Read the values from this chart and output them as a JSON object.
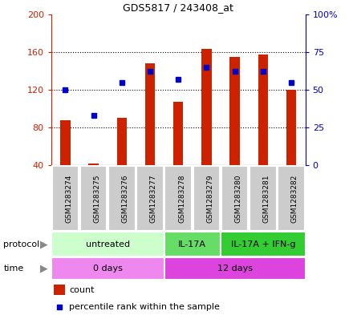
{
  "title": "GDS5817 / 243408_at",
  "samples": [
    "GSM1283274",
    "GSM1283275",
    "GSM1283276",
    "GSM1283277",
    "GSM1283278",
    "GSM1283279",
    "GSM1283280",
    "GSM1283281",
    "GSM1283282"
  ],
  "counts": [
    88,
    42,
    90,
    148,
    107,
    163,
    155,
    157,
    120
  ],
  "percentiles": [
    50,
    33,
    55,
    62,
    57,
    65,
    62,
    62,
    55
  ],
  "bar_color": "#cc2200",
  "dot_color": "#0000cc",
  "ylim_left": [
    40,
    200
  ],
  "ylim_right": [
    0,
    100
  ],
  "yticks_left": [
    40,
    80,
    120,
    160,
    200
  ],
  "ytick_labels_left": [
    "40",
    "80",
    "120",
    "160",
    "200"
  ],
  "yticks_right": [
    0,
    25,
    50,
    75,
    100
  ],
  "ytick_labels_right": [
    "0",
    "25",
    "50",
    "75",
    "100%"
  ],
  "protocol_groups": [
    {
      "label": "untreated",
      "start": 0,
      "end": 4,
      "color": "#ccffcc"
    },
    {
      "label": "IL-17A",
      "start": 4,
      "end": 6,
      "color": "#66dd66"
    },
    {
      "label": "IL-17A + IFN-g",
      "start": 6,
      "end": 9,
      "color": "#33cc33"
    }
  ],
  "time_groups": [
    {
      "label": "0 days",
      "start": 0,
      "end": 4,
      "color": "#ee88ee"
    },
    {
      "label": "12 days",
      "start": 4,
      "end": 9,
      "color": "#dd44dd"
    }
  ],
  "protocol_label": "protocol",
  "time_label": "time",
  "legend_count_label": "count",
  "legend_percentile_label": "percentile rank within the sample",
  "sample_box_color": "#cccccc",
  "bar_width": 0.35
}
